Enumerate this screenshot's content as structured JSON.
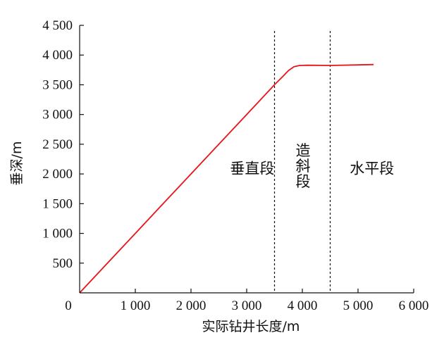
{
  "chart_data": {
    "type": "line",
    "xlabel": "实际钻井长度/m",
    "ylabel": "垂深/m",
    "xlim": [
      0,
      6000
    ],
    "ylim": [
      0,
      4500
    ],
    "origin_label": "0",
    "x_ticks": [
      {
        "value": 1000,
        "label": "1 000"
      },
      {
        "value": 2000,
        "label": "2 000"
      },
      {
        "value": 3000,
        "label": "3 000"
      },
      {
        "value": 4000,
        "label": "4 000"
      },
      {
        "value": 5000,
        "label": "5 000"
      },
      {
        "value": 6000,
        "label": "6 000"
      }
    ],
    "y_ticks": [
      {
        "value": 500,
        "label": "500"
      },
      {
        "value": 1000,
        "label": "1 000"
      },
      {
        "value": 1500,
        "label": "1 500"
      },
      {
        "value": 2000,
        "label": "2 000"
      },
      {
        "value": 2500,
        "label": "2 500"
      },
      {
        "value": 3000,
        "label": "3 000"
      },
      {
        "value": 3500,
        "label": "3 500"
      },
      {
        "value": 4000,
        "label": "4 000"
      },
      {
        "value": 4500,
        "label": "4 500"
      }
    ],
    "series": [
      {
        "color": "#e8141b",
        "x": [
          0,
          500,
          1000,
          1500,
          2000,
          2500,
          3000,
          3500,
          3650,
          3750,
          3850,
          3950,
          4100,
          4500,
          5000,
          5280
        ],
        "y": [
          0,
          500,
          1000,
          1500,
          2000,
          2500,
          3000,
          3500,
          3640,
          3740,
          3805,
          3825,
          3828,
          3825,
          3835,
          3840
        ]
      }
    ],
    "dividers": [
      3500,
      4500
    ],
    "regions": [
      {
        "label": "垂直段",
        "x": 3100,
        "y": 2100
      },
      {
        "label": "造斜段",
        "x": 4000,
        "y": 2100,
        "vertical": true
      },
      {
        "label": "水平段",
        "x": 5250,
        "y": 2100
      }
    ],
    "grid": false
  }
}
